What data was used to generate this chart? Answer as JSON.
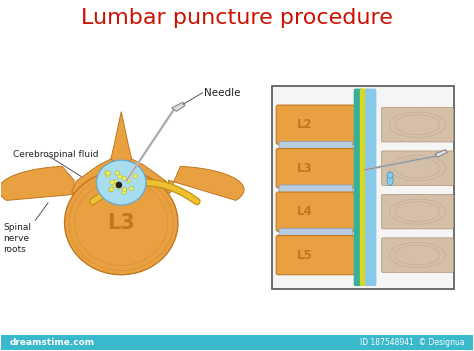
{
  "title": "Lumbar puncture procedure",
  "title_color": "#cc1100",
  "title_fontsize": 16,
  "bg_color": "#ffffff",
  "bottom_bar_color": "#3ab8cc",
  "watermark_text": "dreamstime.com",
  "id_text": "ID 187548941  © Designua",
  "vertebra_body_color": "#e8a040",
  "vertebra_body_edge": "#c07820",
  "vertebra_process_color": "#e8a040",
  "spinal_canal_color": "#a8ddf0",
  "csf_dot_color": "#e8f060",
  "nerve_color": "#f0c030",
  "nerve_edge_color": "#c09010",
  "label_needle": "Needle",
  "label_csf": "Cerebrospinal fluid",
  "label_nerve": "Spinal\nnerve\nroots",
  "label_L3": "L3",
  "side_vertebra_color": "#e8a040",
  "side_disc_color": "#b8cce0",
  "side_labels": [
    "L2",
    "L3",
    "L4",
    "L5"
  ],
  "side_box_edge": "#555555",
  "needle_color": "#bbbbbb",
  "drop_color": "#88ccee"
}
